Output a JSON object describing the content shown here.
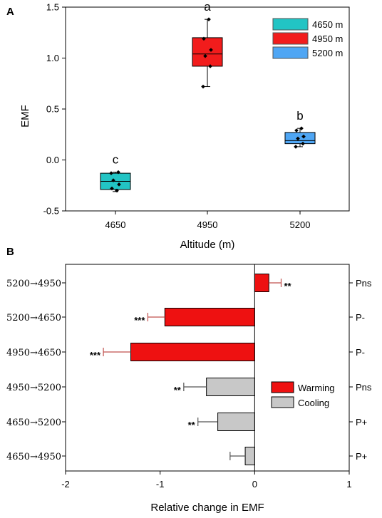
{
  "colors": {
    "alt_4650": "#22C4C4",
    "alt_4950": "#F21C1C",
    "alt_5200": "#4FA6F4",
    "warming": "#EE1111",
    "cooling": "#C8C8C8",
    "error_bar_warming": "#C0504D",
    "error_bar_cooling": "#555555"
  },
  "chart_data": [
    {
      "panel": "A",
      "type": "box",
      "xlabel": "Altitude (m)",
      "ylabel": "EMF",
      "ylim": [
        -0.5,
        1.5
      ],
      "yticks": [
        "-0.5",
        "0.0",
        "0.5",
        "1.0",
        "1.5"
      ],
      "categories": [
        "4650",
        "4950",
        "5200"
      ],
      "legend": {
        "placement": "top-right",
        "entries": [
          "4650 m",
          "4950 m",
          "5200 m"
        ]
      },
      "boxes": [
        {
          "category": "4650",
          "whisker_low": -0.31,
          "q1": -0.29,
          "median": -0.21,
          "q3": -0.13,
          "whisker_high": -0.12,
          "points": [
            -0.13,
            -0.12,
            -0.2,
            -0.24,
            -0.28,
            -0.3
          ],
          "letter": "c"
        },
        {
          "category": "4950",
          "whisker_low": 0.72,
          "q1": 0.92,
          "median": 1.04,
          "q3": 1.2,
          "whisker_high": 1.38,
          "points": [
            0.72,
            0.92,
            1.02,
            1.08,
            1.19,
            1.38
          ],
          "letter": "a"
        },
        {
          "category": "5200",
          "whisker_low": 0.13,
          "q1": 0.16,
          "median": 0.19,
          "q3": 0.27,
          "whisker_high": 0.31,
          "points": [
            0.13,
            0.16,
            0.21,
            0.23,
            0.29,
            0.31
          ],
          "letter": "b"
        }
      ]
    },
    {
      "panel": "B",
      "type": "bar",
      "orientation": "horizontal",
      "xlabel": "Relative change in EMF",
      "xlim": [
        -2,
        1
      ],
      "xticks": [
        "-2",
        "-1",
        "0",
        "1"
      ],
      "categories": [
        "5200→4950",
        "5200→4650",
        "4950→4650",
        "4950→5200",
        "4650→5200",
        "4650→4950"
      ],
      "values": [
        0.15,
        -0.95,
        -1.31,
        -0.51,
        -0.39,
        -0.1
      ],
      "errors": [
        0.13,
        0.18,
        0.29,
        0.24,
        0.21,
        0.16
      ],
      "groups": [
        "Warming",
        "Warming",
        "Warming",
        "Cooling",
        "Cooling",
        "Cooling"
      ],
      "significance": [
        "**",
        "***",
        "***",
        "**",
        "**",
        ""
      ],
      "right_labels": [
        "Pns",
        "P-",
        "P-",
        "Pns",
        "P+",
        "P+"
      ],
      "legend": {
        "placement": "center-right",
        "entries": [
          "Warming",
          "Cooling"
        ]
      }
    }
  ]
}
